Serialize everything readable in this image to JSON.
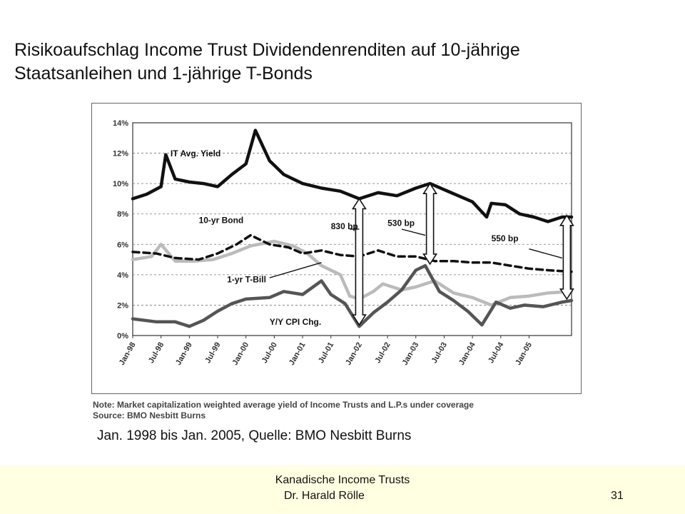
{
  "slide": {
    "title_line1": "Risikoaufschlag Income Trust Dividendenrenditen auf 10-jährige",
    "title_line2": "Staatsanleihen und 1-jährige T-Bonds",
    "caption": "Jan. 1998 bis Jan. 2005, Quelle: BMO Nesbitt Burns",
    "footer_title": "Kanadische Income Trusts",
    "footer_author": "Dr. Harald Rölle",
    "page_number": "31"
  },
  "chart_data": {
    "type": "line",
    "x_start": "1998-01",
    "x_end": "2005-10",
    "ylim": [
      0,
      14
    ],
    "y_ticks": [
      0,
      2,
      4,
      6,
      8,
      10,
      12,
      14
    ],
    "y_tick_labels": [
      "0%",
      "2%",
      "4%",
      "6%",
      "8%",
      "10%",
      "12%",
      "14%"
    ],
    "x_tick_labels": [
      "Jan-98",
      "Jul-98",
      "Jan-99",
      "Jul-99",
      "Jan-00",
      "Jul-00",
      "Jan-01",
      "Jul-01",
      "Jan-02",
      "Jul-02",
      "Jan-03",
      "Jul-03",
      "Jan-04",
      "Jul-04",
      "Jan-05"
    ],
    "grid": true,
    "series": [
      {
        "name": "IT Avg. Yield",
        "color": "#111111",
        "style": "solid",
        "points": [
          [
            "1998-01",
            9.0
          ],
          [
            "1998-04",
            9.3
          ],
          [
            "1998-07",
            9.8
          ],
          [
            "1998-08",
            11.9
          ],
          [
            "1998-10",
            10.3
          ],
          [
            "1999-01",
            10.1
          ],
          [
            "1999-04",
            10.0
          ],
          [
            "1999-07",
            9.8
          ],
          [
            "1999-10",
            10.6
          ],
          [
            "2000-01",
            11.3
          ],
          [
            "2000-03",
            13.5
          ],
          [
            "2000-06",
            11.5
          ],
          [
            "2000-09",
            10.6
          ],
          [
            "2001-01",
            10.0
          ],
          [
            "2001-05",
            9.7
          ],
          [
            "2001-09",
            9.5
          ],
          [
            "2002-01",
            9.0
          ],
          [
            "2002-05",
            9.4
          ],
          [
            "2002-09",
            9.2
          ],
          [
            "2003-01",
            9.7
          ],
          [
            "2003-04",
            10.0
          ],
          [
            "2003-07",
            9.6
          ],
          [
            "2003-10",
            9.2
          ],
          [
            "2004-01",
            8.8
          ],
          [
            "2004-04",
            7.8
          ],
          [
            "2004-05",
            8.7
          ],
          [
            "2004-08",
            8.6
          ],
          [
            "2004-11",
            8.0
          ],
          [
            "2005-02",
            7.8
          ],
          [
            "2005-05",
            7.5
          ],
          [
            "2005-08",
            7.8
          ],
          [
            "2005-10",
            7.8
          ]
        ]
      },
      {
        "name": "10-yr Bond",
        "color": "#111111",
        "style": "dashed",
        "points": [
          [
            "1998-01",
            5.5
          ],
          [
            "1998-06",
            5.4
          ],
          [
            "1998-10",
            5.1
          ],
          [
            "1999-03",
            5.0
          ],
          [
            "1999-07",
            5.4
          ],
          [
            "1999-11",
            6.0
          ],
          [
            "2000-02",
            6.6
          ],
          [
            "2000-06",
            6.0
          ],
          [
            "2000-10",
            5.8
          ],
          [
            "2001-01",
            5.4
          ],
          [
            "2001-05",
            5.6
          ],
          [
            "2001-09",
            5.3
          ],
          [
            "2002-01",
            5.2
          ],
          [
            "2002-05",
            5.6
          ],
          [
            "2002-09",
            5.2
          ],
          [
            "2003-01",
            5.2
          ],
          [
            "2003-05",
            4.9
          ],
          [
            "2003-09",
            4.9
          ],
          [
            "2004-01",
            4.8
          ],
          [
            "2004-05",
            4.8
          ],
          [
            "2004-09",
            4.6
          ],
          [
            "2005-01",
            4.4
          ],
          [
            "2005-05",
            4.3
          ],
          [
            "2005-10",
            4.2
          ]
        ]
      },
      {
        "name": "1-yr T-Bill",
        "color": "#bbbbbb",
        "style": "solid",
        "points": [
          [
            "1998-01",
            5.0
          ],
          [
            "1998-05",
            5.2
          ],
          [
            "1998-07",
            6.0
          ],
          [
            "1998-10",
            4.9
          ],
          [
            "1999-02",
            4.9
          ],
          [
            "1999-06",
            5.0
          ],
          [
            "1999-10",
            5.4
          ],
          [
            "2000-02",
            5.9
          ],
          [
            "2000-07",
            6.2
          ],
          [
            "2000-11",
            5.9
          ],
          [
            "2001-02",
            5.4
          ],
          [
            "2001-05",
            4.6
          ],
          [
            "2001-09",
            4.0
          ],
          [
            "2001-11",
            2.6
          ],
          [
            "2002-01",
            2.4
          ],
          [
            "2002-04",
            2.9
          ],
          [
            "2002-06",
            3.4
          ],
          [
            "2002-10",
            3.0
          ],
          [
            "2003-01",
            3.2
          ],
          [
            "2003-05",
            3.6
          ],
          [
            "2003-09",
            2.8
          ],
          [
            "2004-01",
            2.5
          ],
          [
            "2004-05",
            2.0
          ],
          [
            "2004-09",
            2.5
          ],
          [
            "2005-01",
            2.6
          ],
          [
            "2005-05",
            2.8
          ],
          [
            "2005-10",
            2.9
          ]
        ]
      },
      {
        "name": "Y/Y CPI Chg.",
        "color": "#555555",
        "style": "solid",
        "points": [
          [
            "1998-01",
            1.1
          ],
          [
            "1998-06",
            0.9
          ],
          [
            "1998-10",
            0.9
          ],
          [
            "1999-01",
            0.6
          ],
          [
            "1999-04",
            1.0
          ],
          [
            "1999-07",
            1.6
          ],
          [
            "1999-10",
            2.1
          ],
          [
            "2000-01",
            2.4
          ],
          [
            "2000-06",
            2.5
          ],
          [
            "2000-09",
            2.9
          ],
          [
            "2001-01",
            2.7
          ],
          [
            "2001-05",
            3.6
          ],
          [
            "2001-07",
            2.7
          ],
          [
            "2001-10",
            2.1
          ],
          [
            "2002-01",
            0.6
          ],
          [
            "2002-04",
            1.5
          ],
          [
            "2002-07",
            2.2
          ],
          [
            "2002-10",
            3.0
          ],
          [
            "2003-01",
            4.3
          ],
          [
            "2003-03",
            4.6
          ],
          [
            "2003-06",
            2.9
          ],
          [
            "2003-09",
            2.3
          ],
          [
            "2003-12",
            1.6
          ],
          [
            "2004-03",
            0.7
          ],
          [
            "2004-06",
            2.2
          ],
          [
            "2004-09",
            1.8
          ],
          [
            "2004-12",
            2.0
          ],
          [
            "2005-04",
            1.9
          ],
          [
            "2005-08",
            2.2
          ],
          [
            "2005-10",
            2.3
          ]
        ]
      }
    ],
    "annotations": [
      {
        "text": "IT Avg. Yield",
        "x": "1998-09",
        "y": 11.8
      },
      {
        "text": "10-yr Bond",
        "x": "1999-03",
        "y": 7.4
      },
      {
        "text": "1-yr T-Bill",
        "x": "1999-09",
        "y": 3.5
      },
      {
        "text": "Y/Y CPI Chg.",
        "x": "2000-06",
        "y": 0.7
      },
      {
        "text": "830 bp",
        "x": "2001-07",
        "y": 7.0
      },
      {
        "text": "530 bp",
        "x": "2002-07",
        "y": 7.2
      },
      {
        "text": "550 bp",
        "x": "2004-05",
        "y": 6.2
      }
    ],
    "spread_arrows": [
      {
        "label": "830 bp",
        "x": "2002-01",
        "y_from": 0.7,
        "y_to": 9.0
      },
      {
        "label": "530 bp",
        "x": "2003-04",
        "y_from": 4.7,
        "y_to": 10.0
      },
      {
        "label": "550 bp",
        "x": "2005-09",
        "y_from": 2.4,
        "y_to": 7.9
      }
    ],
    "note_line1": "Note: Market capitalization weighted average yield of Income Trusts and L.P.s under coverage",
    "note_line2": "Source: BMO Nesbitt Burns"
  }
}
